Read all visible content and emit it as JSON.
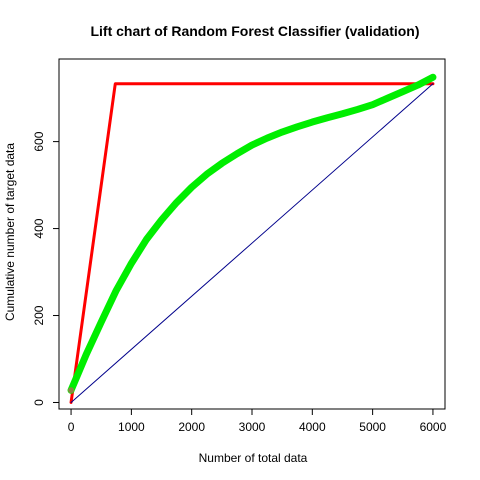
{
  "chart_data": {
    "type": "line",
    "title": "Lift chart of Random Forest Classifier (validation)",
    "xlabel": "Number of total data",
    "ylabel": "Cumulative number of target data",
    "xlim": [
      -200,
      6200
    ],
    "ylim": [
      -15,
      790
    ],
    "xticks": [
      0,
      1000,
      2000,
      3000,
      4000,
      5000,
      6000
    ],
    "yticks": [
      0,
      200,
      400,
      600
    ],
    "grid": false,
    "legend": "none",
    "series": [
      {
        "color": "#ff0000",
        "width": 3,
        "points": [
          [
            0,
            0
          ],
          [
            733,
            733
          ],
          [
            6000,
            733
          ]
        ]
      },
      {
        "color": "#00ee00",
        "width": 7,
        "points": [
          [
            0,
            28
          ],
          [
            250,
            110
          ],
          [
            500,
            185
          ],
          [
            750,
            258
          ],
          [
            1000,
            320
          ],
          [
            1250,
            375
          ],
          [
            1500,
            420
          ],
          [
            1750,
            460
          ],
          [
            2000,
            495
          ],
          [
            2250,
            525
          ],
          [
            2500,
            550
          ],
          [
            2750,
            572
          ],
          [
            3000,
            592
          ],
          [
            3250,
            608
          ],
          [
            3500,
            622
          ],
          [
            3750,
            634
          ],
          [
            4000,
            645
          ],
          [
            4250,
            655
          ],
          [
            4500,
            664
          ],
          [
            4750,
            674
          ],
          [
            5000,
            685
          ],
          [
            5250,
            700
          ],
          [
            5500,
            715
          ],
          [
            5750,
            730
          ],
          [
            6000,
            748
          ]
        ]
      },
      {
        "color": "#00008b",
        "width": 1,
        "points": [
          [
            0,
            0
          ],
          [
            6000,
            733
          ]
        ]
      }
    ],
    "start_marker": {
      "x": 0,
      "y": 28,
      "color": "#888844"
    }
  }
}
